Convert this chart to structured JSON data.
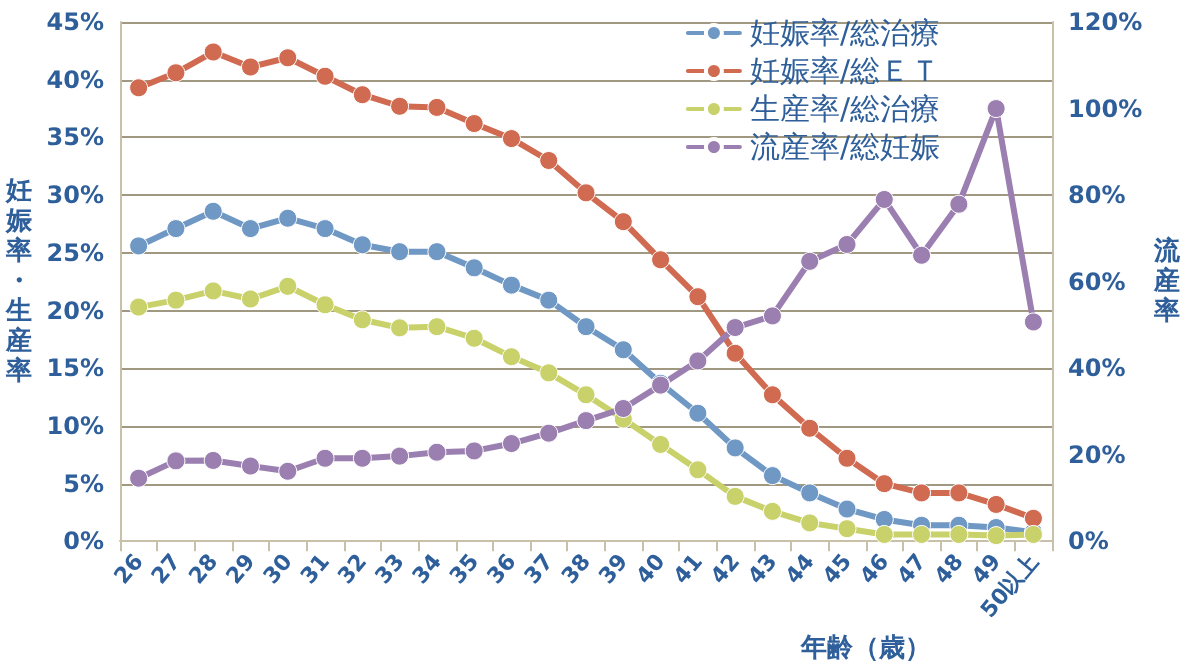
{
  "chart_data": {
    "type": "line",
    "categories": [
      "26",
      "27",
      "28",
      "29",
      "30",
      "31",
      "32",
      "33",
      "34",
      "35",
      "36",
      "37",
      "38",
      "39",
      "40",
      "41",
      "42",
      "43",
      "44",
      "45",
      "46",
      "47",
      "48",
      "49",
      "50以上"
    ],
    "series": [
      {
        "name": "妊娠率/総治療",
        "color": "#6f98c4",
        "values": [
          25.6,
          27.1,
          28.6,
          27.1,
          28.0,
          27.1,
          25.7,
          25.1,
          25.1,
          23.7,
          22.2,
          20.9,
          18.6,
          16.6,
          13.7,
          11.1,
          8.1,
          5.7,
          4.2,
          2.8,
          1.9,
          1.4,
          1.4,
          1.2,
          0.8
        ]
      },
      {
        "name": "妊娠率/総ＥＴ",
        "color": "#d06a50",
        "values": [
          39.3,
          40.6,
          42.4,
          41.1,
          41.9,
          40.3,
          38.7,
          37.7,
          37.6,
          36.2,
          34.9,
          33.0,
          30.2,
          27.7,
          24.4,
          21.2,
          16.3,
          12.7,
          9.8,
          7.2,
          5.0,
          4.2,
          4.2,
          3.2,
          2.0
        ]
      },
      {
        "name": "生産率/総治療",
        "color": "#c9d16a",
        "values": [
          20.3,
          20.9,
          21.7,
          21.0,
          22.1,
          20.5,
          19.2,
          18.5,
          18.6,
          17.6,
          16.0,
          14.6,
          12.7,
          10.6,
          8.4,
          6.2,
          3.9,
          2.6,
          1.6,
          1.1,
          0.6,
          0.6,
          0.6,
          0.5,
          0.6
        ]
      },
      {
        "name": "流産率/総妊娠",
        "color": "#9b7fb0",
        "axis": "y2",
        "values": [
          14.6,
          18.6,
          18.7,
          17.4,
          16.2,
          19.2,
          19.2,
          19.7,
          20.6,
          20.9,
          22.6,
          25.0,
          27.9,
          30.7,
          36.1,
          41.7,
          49.4,
          52.1,
          64.7,
          68.6,
          79.0,
          66.1,
          77.9,
          100,
          50.7
        ]
      }
    ],
    "xlabel": "年齢（歳）",
    "ylabel": "妊娠率・生産率",
    "y2label": "流産率",
    "ylim": [
      0,
      45
    ],
    "yticks": [
      {
        "value": 0,
        "label": "0%"
      },
      {
        "value": 5,
        "label": "5%"
      },
      {
        "value": 10,
        "label": "10%"
      },
      {
        "value": 15,
        "label": "15%"
      },
      {
        "value": 20,
        "label": "20%"
      },
      {
        "value": 25,
        "label": "25%"
      },
      {
        "value": 30,
        "label": "30%"
      },
      {
        "value": 35,
        "label": "35%"
      },
      {
        "value": 40,
        "label": "40%"
      },
      {
        "value": 45,
        "label": "45%"
      }
    ],
    "y2lim": [
      0,
      120
    ],
    "y2ticks": [
      {
        "value": 0,
        "label": "0%"
      },
      {
        "value": 20,
        "label": "20%"
      },
      {
        "value": 40,
        "label": "40%"
      },
      {
        "value": 60,
        "label": "60%"
      },
      {
        "value": 80,
        "label": "80%"
      },
      {
        "value": 100,
        "label": "100%"
      },
      {
        "value": 120,
        "label": "120%"
      }
    ],
    "grid": "y",
    "legend": "top right",
    "marker": "circle",
    "line_style": "solid"
  }
}
